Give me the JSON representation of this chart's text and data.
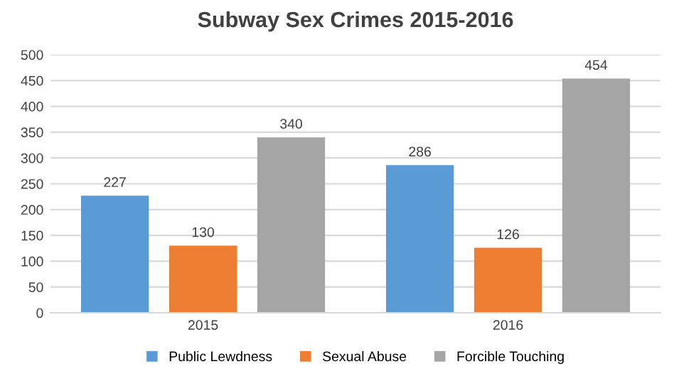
{
  "chart_data": {
    "type": "bar",
    "title": "Subway Sex Crimes 2015-2016",
    "categories": [
      "2015",
      "2016"
    ],
    "series": [
      {
        "name": "Public Lewdness",
        "color": "#5b9bd5",
        "values": [
          227,
          286
        ]
      },
      {
        "name": "Sexual Abuse",
        "color": "#ed7d31",
        "values": [
          130,
          126
        ]
      },
      {
        "name": "Forcible Touching",
        "color": "#a5a5a5",
        "values": [
          340,
          454
        ]
      }
    ],
    "ylim": [
      0,
      500
    ],
    "yticks": [
      0,
      50,
      100,
      150,
      200,
      250,
      300,
      350,
      400,
      450,
      500
    ],
    "grid": "y",
    "legend": "bottom",
    "data_labels": true
  }
}
